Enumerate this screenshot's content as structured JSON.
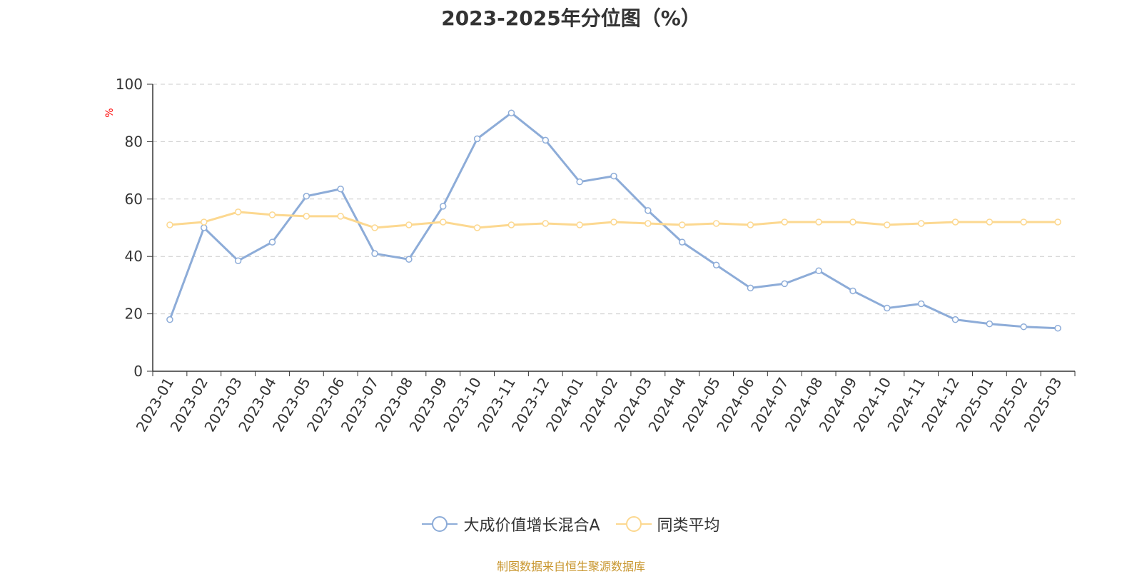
{
  "colors": {
    "series_fund": "#8dacd8",
    "series_avg": "#fcd890",
    "axis": "#333333",
    "grid": "#cccccc",
    "ylabel": "#ff0000",
    "source": "#c8962e"
  },
  "chart_data": {
    "type": "line",
    "title": "2023-2025年分位图（%）",
    "ylabel": "%",
    "xlabel": "",
    "ylim": [
      0,
      100
    ],
    "yticks": [
      0,
      20,
      40,
      60,
      80,
      100
    ],
    "grid": true,
    "legend_position": "bottom",
    "categories": [
      "2023-01",
      "2023-02",
      "2023-03",
      "2023-04",
      "2023-05",
      "2023-06",
      "2023-07",
      "2023-08",
      "2023-09",
      "2023-10",
      "2023-11",
      "2023-12",
      "2024-01",
      "2024-02",
      "2024-03",
      "2024-04",
      "2024-05",
      "2024-06",
      "2024-07",
      "2024-08",
      "2024-09",
      "2024-10",
      "2024-11",
      "2024-12",
      "2025-01",
      "2025-02",
      "2025-03"
    ],
    "series": [
      {
        "name": "大成价值增长混合A",
        "values": [
          18,
          50,
          38.5,
          45,
          61,
          63.5,
          41,
          39,
          57.5,
          81,
          90,
          80.5,
          66,
          68,
          56,
          45,
          37,
          29,
          30.5,
          35,
          28,
          22,
          23.5,
          18,
          16.5,
          15.5,
          15
        ]
      },
      {
        "name": "同类平均",
        "values": [
          51,
          52,
          55.5,
          54.5,
          54,
          54,
          50,
          51,
          52,
          50,
          51,
          51.5,
          51,
          52,
          51.5,
          51,
          51.5,
          51,
          52,
          52,
          52,
          51,
          51.5,
          52,
          52,
          52,
          52
        ]
      }
    ]
  },
  "source_text": "制图数据来自恒生聚源数据库"
}
